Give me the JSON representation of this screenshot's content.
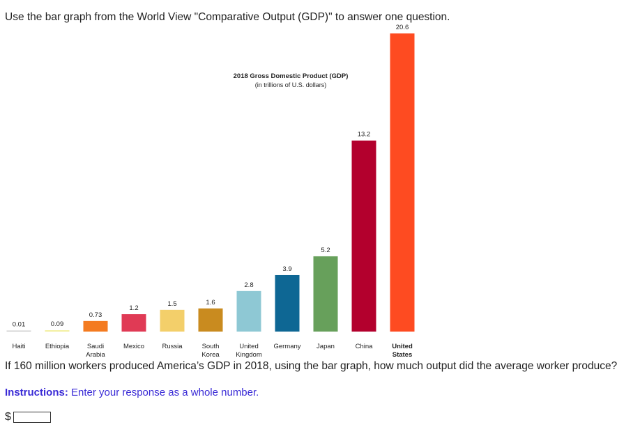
{
  "intro": "Use the bar graph from the World View \"Comparative Output (GDP)\" to answer one question.",
  "question": "If 160 million workers produced America’s GDP in 2018, using the bar graph, how much output did the average worker produce?",
  "instructions": {
    "label": "Instructions:",
    "text": " Enter your response as a whole number."
  },
  "answer": {
    "currency": "$",
    "value": ""
  },
  "chart_data": {
    "type": "bar",
    "title": "2018 Gross Domestic Product (GDP)",
    "subtitle": "(in trillions of U.S. dollars)",
    "categories": [
      [
        "Haiti"
      ],
      [
        "Ethiopia"
      ],
      [
        "Saudi",
        "Arabia"
      ],
      [
        "Mexico"
      ],
      [
        "Russia"
      ],
      [
        "South",
        "Korea"
      ],
      [
        "United",
        "Kingdom"
      ],
      [
        "Germany"
      ],
      [
        "Japan"
      ],
      [
        "China"
      ],
      [
        "United",
        "States"
      ]
    ],
    "values": [
      0.01,
      0.09,
      0.73,
      1.2,
      1.5,
      1.6,
      2.8,
      3.9,
      5.2,
      13.2,
      20.6
    ],
    "value_labels": [
      "0.01",
      "0.09",
      "0.73",
      "1.2",
      "1.5",
      "1.6",
      "2.8",
      "3.9",
      "5.2",
      "13.2",
      "20.6"
    ],
    "colors": [
      "#cfcfcf",
      "#f2ee9a",
      "#f47b20",
      "#e03a55",
      "#f3cf6a",
      "#c98b1f",
      "#8ec8d4",
      "#0e6794",
      "#67a05b",
      "#b3002d",
      "#fe4b21"
    ],
    "highlight_index": 10,
    "ylim": [
      0,
      20.6
    ],
    "grid": false,
    "legend": "none",
    "xlabel": "",
    "ylabel": ""
  }
}
